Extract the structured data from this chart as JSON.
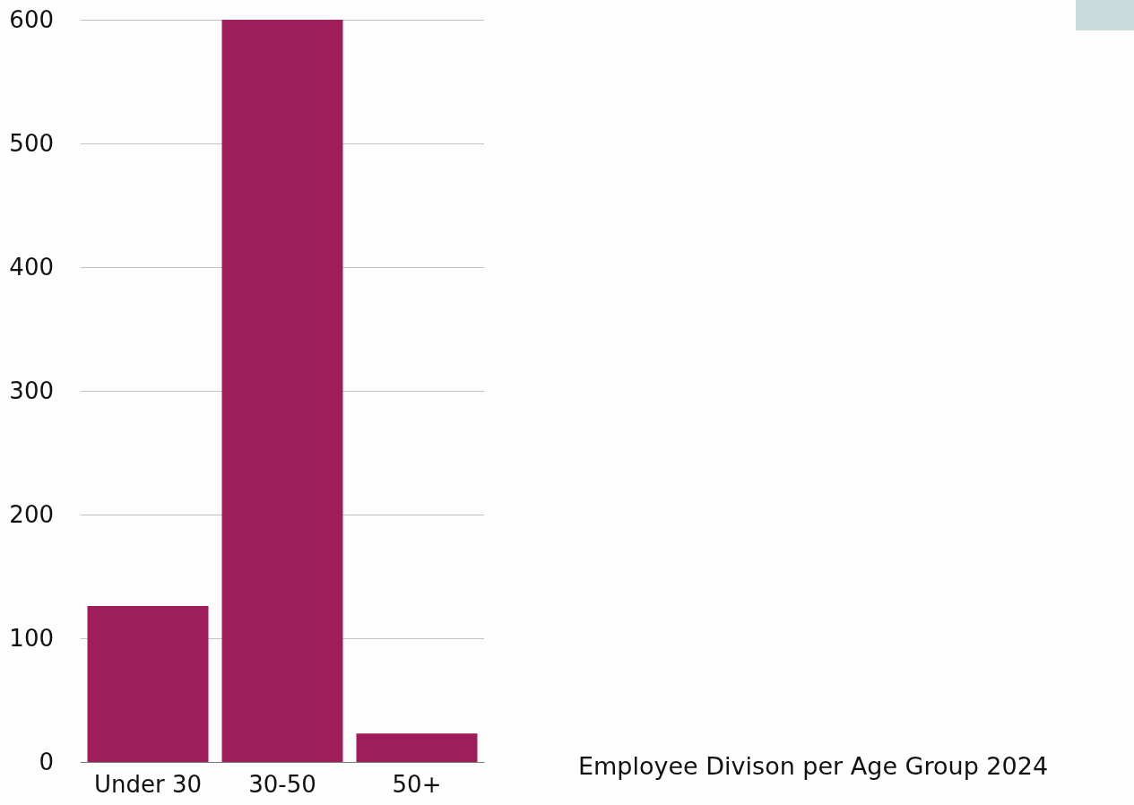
{
  "chart_data": {
    "type": "bar",
    "title": "Employee Divison per Age Group 2024",
    "categories": [
      "Under 30",
      "30-50",
      "50+"
    ],
    "values": [
      126,
      600,
      23
    ],
    "color": "#9d1e5a",
    "ylim": [
      0,
      600
    ],
    "yticks": [
      0,
      100,
      200,
      300,
      400,
      500,
      600
    ],
    "grid": "y"
  }
}
